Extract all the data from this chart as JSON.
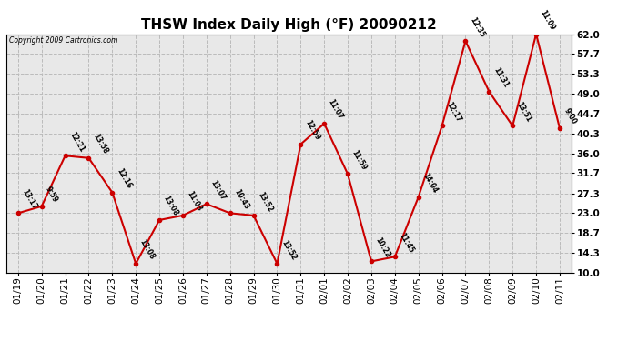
{
  "title": "THSW Index Daily High (°F) 20090212",
  "copyright": "Copyright 2009 Cartronics.com",
  "x_labels": [
    "01/19",
    "01/20",
    "01/21",
    "01/22",
    "01/23",
    "01/24",
    "01/25",
    "01/26",
    "01/27",
    "01/28",
    "01/29",
    "01/30",
    "01/31",
    "02/01",
    "02/02",
    "02/03",
    "02/04",
    "02/05",
    "02/06",
    "02/07",
    "02/08",
    "02/09",
    "02/10",
    "02/11"
  ],
  "y_values": [
    23.0,
    24.5,
    35.5,
    35.0,
    27.5,
    12.0,
    21.5,
    22.5,
    25.0,
    23.0,
    22.5,
    12.0,
    38.0,
    42.5,
    31.5,
    12.5,
    13.5,
    26.5,
    42.0,
    60.5,
    49.5,
    42.0,
    62.0,
    41.5
  ],
  "time_labels": [
    "13:17",
    "9:59",
    "12:21",
    "13:58",
    "12:16",
    "13:08",
    "13:08",
    "11:03",
    "13:07",
    "10:43",
    "13:52",
    "13:52",
    "12:59",
    "11:07",
    "11:59",
    "10:22",
    "11:45",
    "14:04",
    "12:17",
    "12:35",
    "11:31",
    "13:51",
    "11:09",
    "9:00"
  ],
  "y_ticks": [
    10.0,
    14.3,
    18.7,
    23.0,
    27.3,
    31.7,
    36.0,
    40.3,
    44.7,
    49.0,
    53.3,
    57.7,
    62.0
  ],
  "ylim": [
    10.0,
    62.0
  ],
  "line_color": "#cc0000",
  "marker_color": "#cc0000",
  "bg_color": "#e8e8e8",
  "grid_color": "#bbbbbb",
  "title_fontsize": 11,
  "tick_fontsize": 7.5,
  "label_rotation": -60
}
